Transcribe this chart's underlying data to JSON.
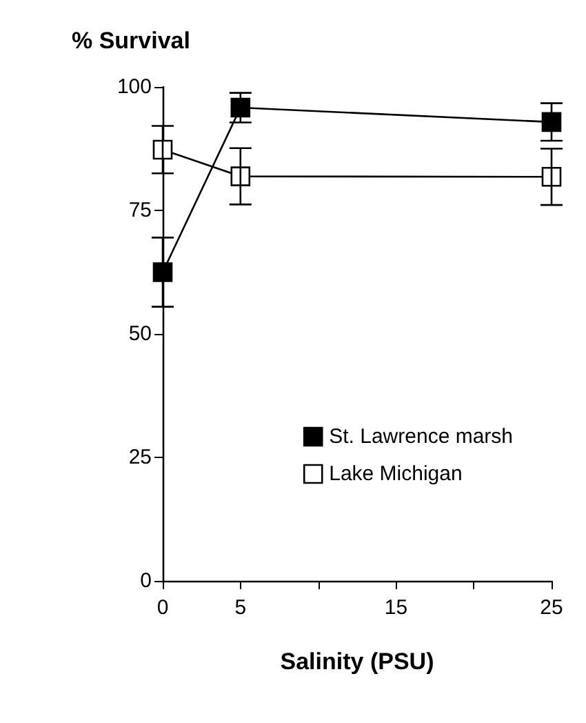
{
  "chart_data": {
    "type": "line",
    "ylabel": "% Survival",
    "xlabel": "Salinity (PSU)",
    "x": [
      0,
      5,
      25
    ],
    "series": [
      {
        "name": "St. Lawrence marsh",
        "color": "#000000",
        "values": [
          62.5,
          95.8,
          92.9
        ],
        "errors": [
          7,
          3,
          3.8
        ]
      },
      {
        "name": "Lake Michigan",
        "color": "#ffffff",
        "values": [
          87.3,
          81.9,
          81.8
        ],
        "errors": [
          4.8,
          5.7,
          5.7
        ]
      }
    ],
    "xlim": [
      0,
      25
    ],
    "xticks": [
      0,
      5,
      {
        "value": 10,
        "label": null
      },
      15,
      {
        "value": 20,
        "label": null
      },
      25
    ],
    "ylim": [
      0,
      100
    ],
    "yticks": [
      0,
      25,
      50,
      75,
      100
    ],
    "grid": false,
    "legend": "bottom right",
    "marker": "square",
    "line_style": "solid"
  }
}
